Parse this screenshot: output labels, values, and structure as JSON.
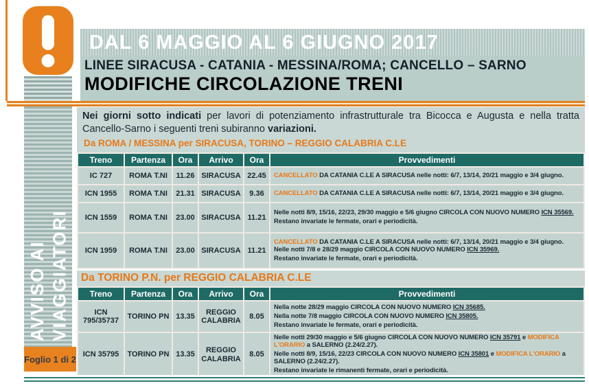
{
  "colors": {
    "orange_accent": "#e8801d",
    "teal_header": "#1e6a64",
    "teal_cell": "#c3d4d0",
    "teal_light": "#c9d8d4"
  },
  "icon": {
    "name": "warning-exclamation-icon"
  },
  "sidebar": {
    "line1": "AVVISO AI",
    "line2": "VIAGGIATORI",
    "foglio": "Foglio 1 di 2"
  },
  "header": {
    "period": "DAL 6 MAGGIO  AL 6 GIUGNO 2017",
    "lines": "LINEE SIRACUSA - CATANIA - MESSINA/ROMA; CANCELLO – SARNO",
    "title": "MODIFICHE CIRCOLAZIONE TRENI"
  },
  "intro": {
    "lead": "Nei giorni sotto indicati",
    "middle": "  per lavori di potenziamento infrastrutturale tra Bicocca e Augusta e nella tratta Cancello-Sarno i seguenti treni subiranno ",
    "tail": "variazioni."
  },
  "sections": [
    {
      "heading": "Da ROMA / MESSINA per SIRACUSA, TORINO – REGGIO CALABRIA C.LE",
      "columns": [
        "Treno",
        "Partenza",
        "Ora",
        "Arrivo",
        "Ora",
        "Provvedimenti"
      ],
      "rows": [
        {
          "treno": "IC 727",
          "partenza": "ROMA T.NI",
          "ora_partenza": "11.26",
          "arrivo": "SIRACUSA",
          "ora_arrivo": "22.45",
          "provvedimenti": [
            [
              {
                "t": "CANCELLATO",
                "s": "orange"
              },
              {
                "t": " DA CATANIA C.LE A SIRACUSA nelle notti: 6/7, 13/14, 20/21 maggio e 3/4 giugno.",
                "s": ""
              }
            ]
          ]
        },
        {
          "treno": "ICN 1955",
          "partenza": "ROMA T.NI",
          "ora_partenza": "21.31",
          "arrivo": "SIRACUSA",
          "ora_arrivo": "9.36",
          "provvedimenti": [
            [
              {
                "t": "CANCELLATO",
                "s": "orange"
              },
              {
                "t": " DA CATANIA C.LE A SIRACUSA nelle notti: 6/7, 13/14, 20/21 maggio e 3/4 giugno.",
                "s": ""
              }
            ]
          ]
        },
        {
          "treno": "ICN 1559",
          "partenza": "ROMA T.NI",
          "ora_partenza": "23.00",
          "arrivo": "SIRACUSA",
          "ora_arrivo": "11.21",
          "provvedimenti": [
            [
              {
                "t": "Nelle notti 8/9, 15/16, 22/23, 29/30 maggio e 5/6 giugno CIRCOLA CON NUOVO NUMERO ",
                "s": ""
              },
              {
                "t": "ICN 35569.",
                "s": "u"
              }
            ],
            [
              {
                "t": "Restano invariate le fermate, orari e periodicità.",
                "s": ""
              }
            ]
          ]
        },
        {
          "treno": "ICN 1959",
          "partenza": "ROMA T.NI",
          "ora_partenza": "23.00",
          "arrivo": "SIRACUSA",
          "ora_arrivo": "11.21",
          "provvedimenti": [
            [
              {
                "t": "CANCELLATO",
                "s": "orange"
              },
              {
                "t": " DA CATANIA C.LE A SIRACUSA nelle notti: 6/7, 13/14, 20/21 maggio e 3/4 giugno. Nelle notti 7/8 e 28/29 maggio CIRCOLA CON NUOVO NUMERO ",
                "s": ""
              },
              {
                "t": "ICN 35969.",
                "s": "u"
              }
            ],
            [
              {
                "t": "Restano invariate le fermate, orari e periodicità.",
                "s": ""
              }
            ]
          ]
        }
      ]
    },
    {
      "heading": "Da TORINO P.N. per REGGIO CALABRIA C.LE",
      "columns": [
        "Treno",
        "Partenza",
        "Ora",
        "Arrivo",
        "Ora",
        "Provvedimenti"
      ],
      "rows": [
        {
          "treno": "ICN 795/35737",
          "partenza": "TORINO PN",
          "ora_partenza": "13.35",
          "arrivo": "REGGIO CALABRIA",
          "ora_arrivo": "8.05",
          "provvedimenti": [
            [
              {
                "t": "Nella notte 28/29 maggio CIRCOLA CON NUOVO NUMERO ",
                "s": ""
              },
              {
                "t": "ICN 35685.",
                "s": "u"
              }
            ],
            [
              {
                "t": "Nella notte 7/8 maggio CIRCOLA CON NUOVO NUMERO ",
                "s": ""
              },
              {
                "t": "ICN 35805.",
                "s": "u"
              }
            ],
            [
              {
                "t": "Restano invariate le fermate, orari e periodicità.",
                "s": ""
              }
            ]
          ]
        },
        {
          "treno": "ICN 35795",
          "partenza": "TORINO PN",
          "ora_partenza": "13.35",
          "arrivo": "REGGIO CALABRIA",
          "ora_arrivo": "8.05",
          "provvedimenti": [
            [
              {
                "t": "Nelle notti 29/30 maggio e 5/6 giugno  CIRCOLA CON NUOVO NUMERO ",
                "s": ""
              },
              {
                "t": "ICN 35791",
                "s": "u"
              },
              {
                "t": " e ",
                "s": ""
              },
              {
                "t": "MODIFICA L'ORARIO",
                "s": "orange"
              },
              {
                "t": " a SALERNO (2.24/2.27).",
                "s": ""
              }
            ],
            [
              {
                "t": "Nelle notti 8/9, 15/16, 22/23 CIRCOLA CON NUOVO NUMERO ",
                "s": ""
              },
              {
                "t": "ICN 35801",
                "s": "u"
              },
              {
                "t": " e ",
                "s": ""
              },
              {
                "t": "MODIFICA L'ORARIO",
                "s": "orange"
              },
              {
                "t": " a SALERNO (2.24/2.27).",
                "s": ""
              }
            ],
            [
              {
                "t": "Restano invariate le rimanenti fermate, orari e periodicità.",
                "s": ""
              }
            ]
          ]
        }
      ]
    }
  ]
}
